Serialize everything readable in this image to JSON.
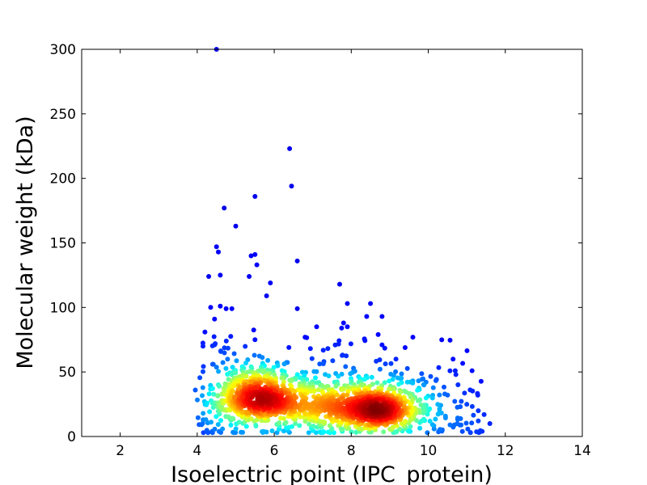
{
  "chart_data": {
    "type": "scatter",
    "title": "",
    "xlabel": "Isoelectric point (IPC_protein)",
    "ylabel": "Molecular weight (kDa)",
    "xlim": [
      1,
      14
    ],
    "ylim": [
      0,
      300
    ],
    "x_ticks": [
      2,
      4,
      6,
      8,
      10,
      12,
      14
    ],
    "y_ticks": [
      0,
      50,
      100,
      150,
      200,
      250,
      300
    ],
    "grid": false,
    "legend": "none",
    "colormap": "jet (point density: blue = low, red = high)",
    "colors": {
      "low": "#0000cc",
      "mid_low": "#00c8ff",
      "mid": "#80ff80",
      "mid_high": "#ffd000",
      "high": "#cc0000"
    },
    "density_clusters": [
      {
        "center_x": 5.6,
        "center_y": 28,
        "peak": "high"
      },
      {
        "center_x": 8.6,
        "center_y": 20,
        "peak": "high"
      },
      {
        "center_x": 7.1,
        "center_y": 25,
        "peak": "mid"
      }
    ],
    "outliers": [
      {
        "x": 4.5,
        "y": 300
      },
      {
        "x": 6.4,
        "y": 223
      },
      {
        "x": 6.45,
        "y": 194
      },
      {
        "x": 5.5,
        "y": 186
      },
      {
        "x": 4.7,
        "y": 177
      },
      {
        "x": 5.0,
        "y": 163
      },
      {
        "x": 4.5,
        "y": 147
      },
      {
        "x": 4.55,
        "y": 143
      },
      {
        "x": 5.5,
        "y": 141
      },
      {
        "x": 5.4,
        "y": 140
      },
      {
        "x": 6.6,
        "y": 136
      },
      {
        "x": 5.55,
        "y": 133
      },
      {
        "x": 4.3,
        "y": 124
      },
      {
        "x": 4.6,
        "y": 125
      },
      {
        "x": 5.35,
        "y": 124
      },
      {
        "x": 5.9,
        "y": 119
      },
      {
        "x": 7.7,
        "y": 118
      },
      {
        "x": 5.8,
        "y": 109
      },
      {
        "x": 8.5,
        "y": 103
      },
      {
        "x": 7.9,
        "y": 103
      },
      {
        "x": 4.35,
        "y": 100
      },
      {
        "x": 4.6,
        "y": 101
      },
      {
        "x": 4.75,
        "y": 99
      },
      {
        "x": 4.9,
        "y": 99
      },
      {
        "x": 6.6,
        "y": 99
      },
      {
        "x": 8.8,
        "y": 93
      },
      {
        "x": 8.4,
        "y": 93
      },
      {
        "x": 4.45,
        "y": 91
      },
      {
        "x": 7.8,
        "y": 88
      },
      {
        "x": 7.75,
        "y": 84
      },
      {
        "x": 7.1,
        "y": 85
      },
      {
        "x": 7.9,
        "y": 85
      },
      {
        "x": 4.2,
        "y": 81
      },
      {
        "x": 8.7,
        "y": 79
      },
      {
        "x": 9.6,
        "y": 77
      },
      {
        "x": 6.8,
        "y": 77
      },
      {
        "x": 4.15,
        "y": 70
      },
      {
        "x": 4.45,
        "y": 71
      },
      {
        "x": 8.8,
        "y": 71
      },
      {
        "x": 4.4,
        "y": 56
      },
      {
        "x": 3.95,
        "y": 36
      },
      {
        "x": 10.7,
        "y": 51
      },
      {
        "x": 11.0,
        "y": 25
      },
      {
        "x": 11.6,
        "y": 10
      },
      {
        "x": 11.4,
        "y": 4
      },
      {
        "x": 11.45,
        "y": 17
      },
      {
        "x": 11.3,
        "y": 20
      }
    ]
  }
}
